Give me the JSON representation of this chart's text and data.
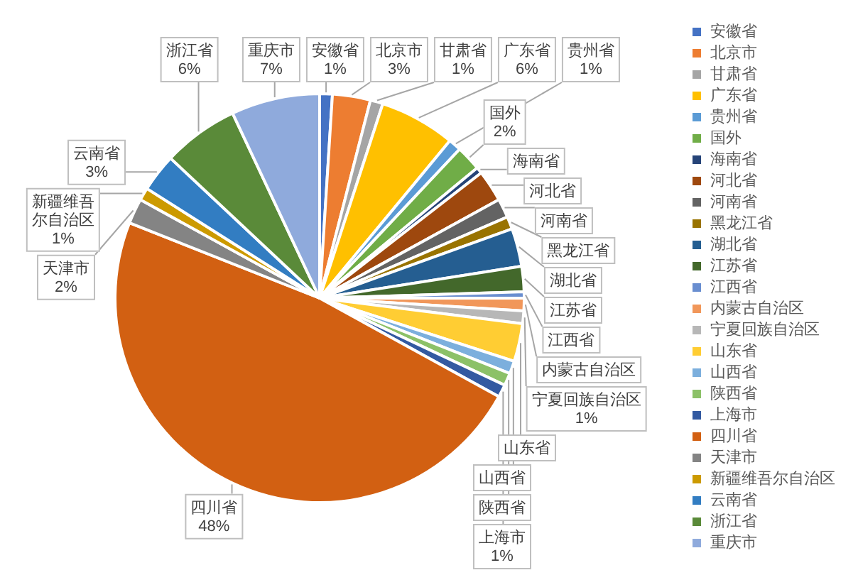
{
  "chart_data": {
    "type": "pie",
    "categories": [
      "安徽省",
      "北京市",
      "甘肃省",
      "广东省",
      "贵州省",
      "国外",
      "海南省",
      "河北省",
      "河南省",
      "黑龙江省",
      "湖北省",
      "江苏省",
      "江西省",
      "内蒙古自治区",
      "宁夏回族自治区",
      "山东省",
      "山西省",
      "陕西省",
      "上海市",
      "四川省",
      "天津市",
      "新疆维吾尔自治区",
      "云南省",
      "浙江省",
      "重庆市"
    ],
    "values": [
      1,
      3,
      1,
      6,
      1,
      2,
      0.5,
      2.5,
      1.5,
      1,
      3,
      2,
      0.5,
      1,
      1,
      3,
      1,
      1,
      1,
      48,
      2,
      1,
      3,
      6,
      7
    ],
    "colors": [
      "#4472c4",
      "#ed7d31",
      "#a5a5a5",
      "#ffc000",
      "#5b9bd5",
      "#70ad47",
      "#264478",
      "#9e480e",
      "#636363",
      "#997300",
      "#255e91",
      "#43682b",
      "#698ed0",
      "#f1975a",
      "#b7b7b7",
      "#ffcd33",
      "#7cafdd",
      "#8cc168",
      "#335aa1",
      "#d26012",
      "#848484",
      "#cc9a00",
      "#327dc2",
      "#5a8a39",
      "#8faadc"
    ],
    "value_labels": [
      "1%",
      "3%",
      "1%",
      "6%",
      "1%",
      "2%",
      null,
      null,
      null,
      null,
      null,
      null,
      null,
      null,
      "1%",
      null,
      null,
      null,
      "1%",
      "48%",
      "2%",
      "1%",
      "3%",
      "6%",
      "7%"
    ],
    "legend": "right"
  }
}
